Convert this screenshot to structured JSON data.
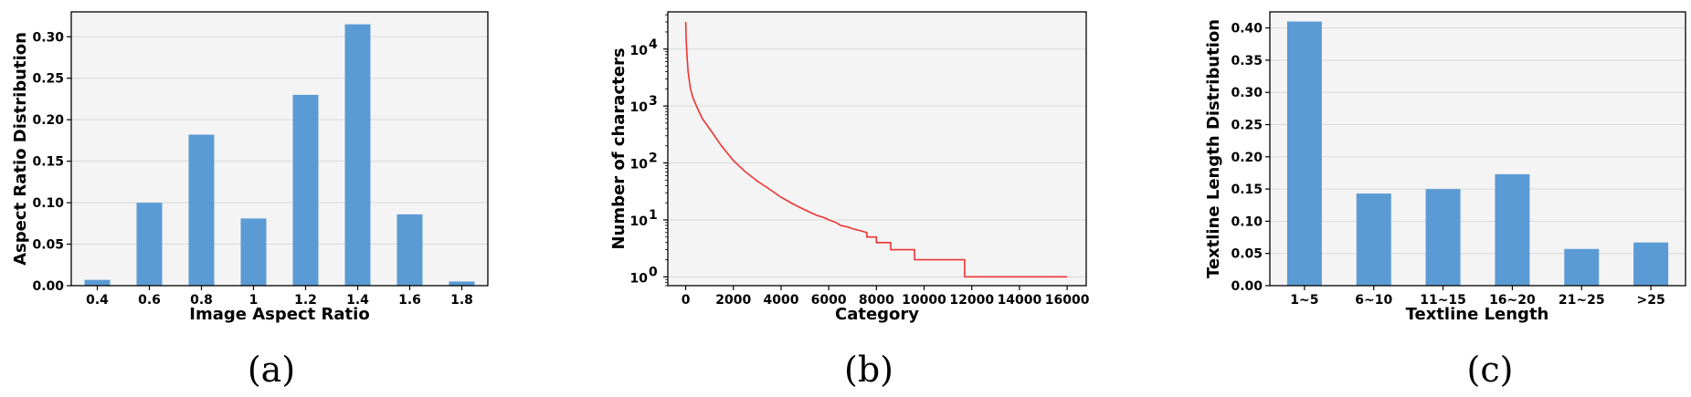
{
  "chart_data": [
    {
      "type": "bar",
      "caption": "(a)",
      "xlabel": "Image Aspect Ratio",
      "ylabel": "Aspect Ratio Distribution",
      "categories": [
        "0.4",
        "0.6",
        "0.8",
        "1",
        "1.2",
        "1.4",
        "1.6",
        "1.8"
      ],
      "values": [
        0.007,
        0.1,
        0.182,
        0.081,
        0.23,
        0.315,
        0.086,
        0.005
      ],
      "ylim": [
        0,
        0.33
      ],
      "yticks": [
        "0.00",
        "0.05",
        "0.10",
        "0.15",
        "0.20",
        "0.25",
        "0.30"
      ],
      "bar_color": "#5b9bd5",
      "background": "#f4f4f4",
      "grid": true
    },
    {
      "type": "line",
      "caption": "(b)",
      "xlabel": "Category",
      "ylabel": "Number of characters",
      "yscale": "log",
      "xlim": [
        -750,
        16800
      ],
      "xticks": [
        "0",
        "2000",
        "4000",
        "6000",
        "8000",
        "10000",
        "12000",
        "14000",
        "16000"
      ],
      "ylim": [
        0.7,
        45000
      ],
      "yticks": [
        {
          "base": "10",
          "exp": "0"
        },
        {
          "base": "10",
          "exp": "1"
        },
        {
          "base": "10",
          "exp": "2"
        },
        {
          "base": "10",
          "exp": "3"
        },
        {
          "base": "10",
          "exp": "4"
        }
      ],
      "x": [
        0,
        20,
        50,
        100,
        200,
        300,
        500,
        700,
        1000,
        1500,
        2000,
        2500,
        3000,
        3500,
        4000,
        4500,
        5000,
        5500,
        5800,
        6000,
        6300,
        6500,
        6800,
        7000,
        7300,
        7600,
        7600,
        8000,
        8000,
        8600,
        8600,
        9600,
        9600,
        11700,
        11700,
        16000
      ],
      "y": [
        30000,
        15000,
        8000,
        4000,
        2000,
        1400,
        900,
        600,
        400,
        200,
        110,
        70,
        48,
        35,
        25,
        19,
        15,
        12,
        11,
        10,
        9,
        8,
        7.5,
        7,
        6.5,
        6,
        5,
        5,
        4,
        4,
        3,
        3,
        2,
        2,
        1,
        1
      ],
      "line_color": "#ee3333",
      "background": "#f4f4f4",
      "grid": true
    },
    {
      "type": "bar",
      "caption": "(c)",
      "xlabel": "Textline Length",
      "ylabel": "Textline Length Distribution",
      "categories": [
        "1~5",
        "6~10",
        "11~15",
        "16~20",
        "21~25",
        ">25"
      ],
      "values": [
        0.41,
        0.143,
        0.15,
        0.173,
        0.057,
        0.067
      ],
      "ylim": [
        0,
        0.425
      ],
      "yticks": [
        "0.00",
        "0.05",
        "0.10",
        "0.15",
        "0.20",
        "0.25",
        "0.30",
        "0.35",
        "0.40"
      ],
      "bar_color": "#5b9bd5",
      "background": "#f4f4f4",
      "grid": true
    }
  ]
}
